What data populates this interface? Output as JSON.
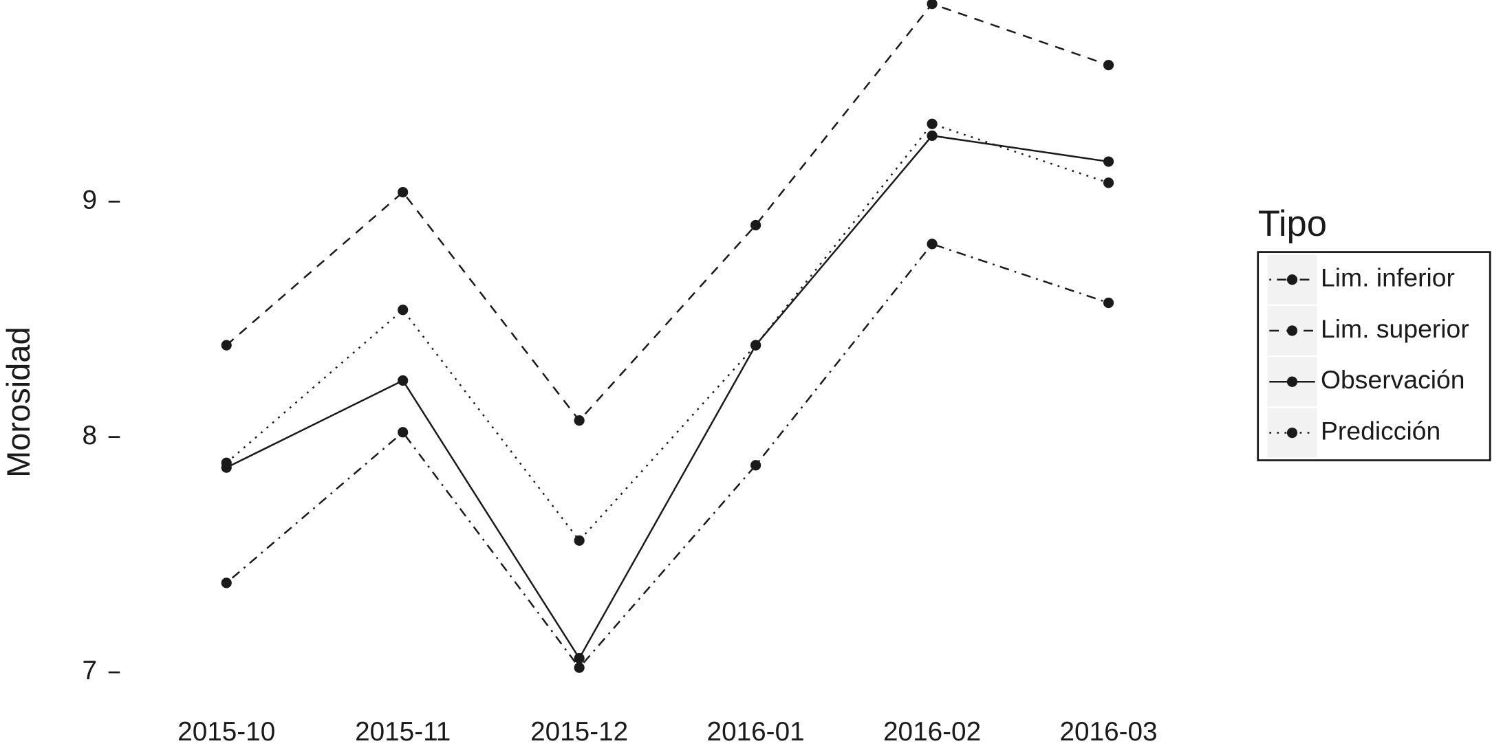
{
  "chart_data": {
    "type": "line",
    "y_label": "Morosidad",
    "categories": [
      "2015-10",
      "2015-11",
      "2015-12",
      "2016-01",
      "2016-02",
      "2016-03"
    ],
    "ylim": [
      6.9,
      9.85
    ],
    "yticks": [
      7,
      8,
      9
    ],
    "legend_title": "Tipo",
    "legend_position": "right",
    "series": [
      {
        "name": "Lim. inferior",
        "color": "#1a1a1a",
        "linetype": "dotdash",
        "values": [
          7.38,
          8.02,
          7.02,
          7.88,
          8.82,
          8.57
        ]
      },
      {
        "name": "Lim. superior",
        "color": "#1a1a1a",
        "linetype": "dashed",
        "values": [
          8.39,
          9.04,
          8.07,
          8.9,
          9.84,
          9.58
        ]
      },
      {
        "name": "Observación",
        "color": "#1a1a1a",
        "linetype": "solid",
        "values": [
          7.87,
          8.24,
          7.06,
          8.39,
          9.28,
          9.17
        ]
      },
      {
        "name": "Predicción",
        "color": "#1a1a1a",
        "linetype": "dotted",
        "values": [
          7.89,
          8.54,
          7.56,
          8.39,
          9.33,
          9.08
        ]
      }
    ]
  }
}
